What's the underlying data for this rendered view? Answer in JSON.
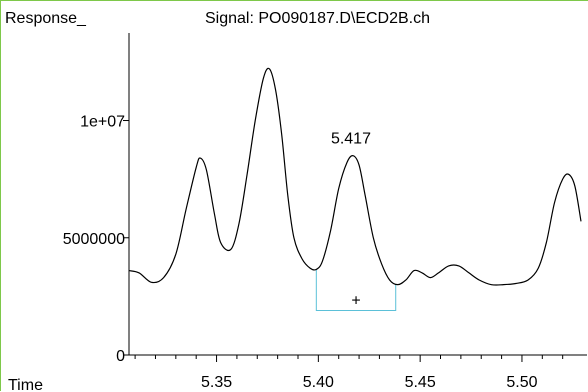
{
  "chart_data": {
    "type": "line",
    "title": "Signal: PO090187.D\\ECD2B.ch",
    "ylabel": "Response_",
    "xlabel": "Time",
    "xlim": [
      5.307,
      5.529
    ],
    "ylim": [
      0,
      14500000
    ],
    "x_ticks": [
      {
        "value": 5.35,
        "label": "5.35"
      },
      {
        "value": 5.4,
        "label": "5.40"
      },
      {
        "value": 5.45,
        "label": "5.45"
      },
      {
        "value": 5.5,
        "label": "5.50"
      }
    ],
    "y_ticks": [
      {
        "value": 0,
        "label": "0"
      },
      {
        "value": 5000000,
        "label": "5000000"
      },
      {
        "value": 10000000,
        "label": "1e+07"
      }
    ],
    "series": [
      {
        "points": [
          [
            5.307,
            3600000
          ],
          [
            5.312,
            3500000
          ],
          [
            5.318,
            3100000
          ],
          [
            5.324,
            3300000
          ],
          [
            5.33,
            4300000
          ],
          [
            5.335,
            6200000
          ],
          [
            5.34,
            8000000
          ],
          [
            5.342,
            8400000
          ],
          [
            5.345,
            7900000
          ],
          [
            5.349,
            6000000
          ],
          [
            5.352,
            4800000
          ],
          [
            5.357,
            4500000
          ],
          [
            5.361,
            5600000
          ],
          [
            5.365,
            7700000
          ],
          [
            5.369,
            10000000
          ],
          [
            5.373,
            11800000
          ],
          [
            5.376,
            12200000
          ],
          [
            5.379,
            11300000
          ],
          [
            5.382,
            9400000
          ],
          [
            5.385,
            6800000
          ],
          [
            5.388,
            5000000
          ],
          [
            5.392,
            4100000
          ],
          [
            5.396,
            3700000
          ],
          [
            5.399,
            3650000
          ],
          [
            5.402,
            4000000
          ],
          [
            5.406,
            5300000
          ],
          [
            5.41,
            7100000
          ],
          [
            5.414,
            8200000
          ],
          [
            5.417,
            8500000
          ],
          [
            5.42,
            8100000
          ],
          [
            5.423,
            6800000
          ],
          [
            5.427,
            5000000
          ],
          [
            5.431,
            3900000
          ],
          [
            5.435,
            3200000
          ],
          [
            5.439,
            3000000
          ],
          [
            5.443,
            3200000
          ],
          [
            5.447,
            3600000
          ],
          [
            5.451,
            3500000
          ],
          [
            5.455,
            3300000
          ],
          [
            5.459,
            3500000
          ],
          [
            5.464,
            3800000
          ],
          [
            5.469,
            3800000
          ],
          [
            5.474,
            3500000
          ],
          [
            5.479,
            3200000
          ],
          [
            5.485,
            3000000
          ],
          [
            5.491,
            3000000
          ],
          [
            5.497,
            3050000
          ],
          [
            5.503,
            3200000
          ],
          [
            5.508,
            3700000
          ],
          [
            5.512,
            4800000
          ],
          [
            5.516,
            6500000
          ],
          [
            5.52,
            7500000
          ],
          [
            5.523,
            7700000
          ],
          [
            5.526,
            7200000
          ],
          [
            5.529,
            5700000
          ]
        ]
      }
    ],
    "peak_labels": [
      {
        "x": 5.417,
        "y": 8500000,
        "text": "5.417"
      }
    ],
    "integration_marker": {
      "x_start": 5.399,
      "x_end": 5.438,
      "baseline_start": 3650000,
      "baseline_end": 3000000,
      "floor": 1900000,
      "marker_text": "+"
    },
    "grid": false,
    "line_color": "#000000",
    "integration_color": "#5bc0d8",
    "frame_color": "#7ec84a"
  }
}
